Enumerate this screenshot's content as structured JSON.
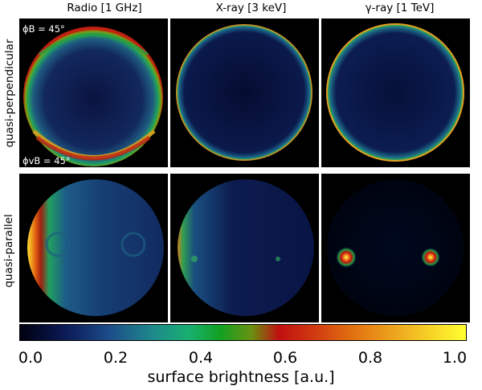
{
  "columns": [
    "Radio [1 GHz]",
    "X-ray [3 keV]",
    "γ-ray [1 TeV]"
  ],
  "rows": [
    "quasi-perpendicular",
    "quasi-parallel"
  ],
  "annotations": {
    "phi_b": "ϕB = 45°",
    "phi_vb": "ϕvB = 45°"
  },
  "colorbar": {
    "ticks": [
      "0.0",
      "0.2",
      "0.4",
      "0.6",
      "0.8",
      "1.0"
    ],
    "label": "surface brightness [a.u.]",
    "colors": [
      "#000010",
      "#0b1a55",
      "#1d4c8a",
      "#1e8a8a",
      "#18b070",
      "#13a020",
      "#6a9010",
      "#c01010",
      "#d03a10",
      "#e06d10",
      "#f0b020",
      "#ffff30"
    ]
  }
}
